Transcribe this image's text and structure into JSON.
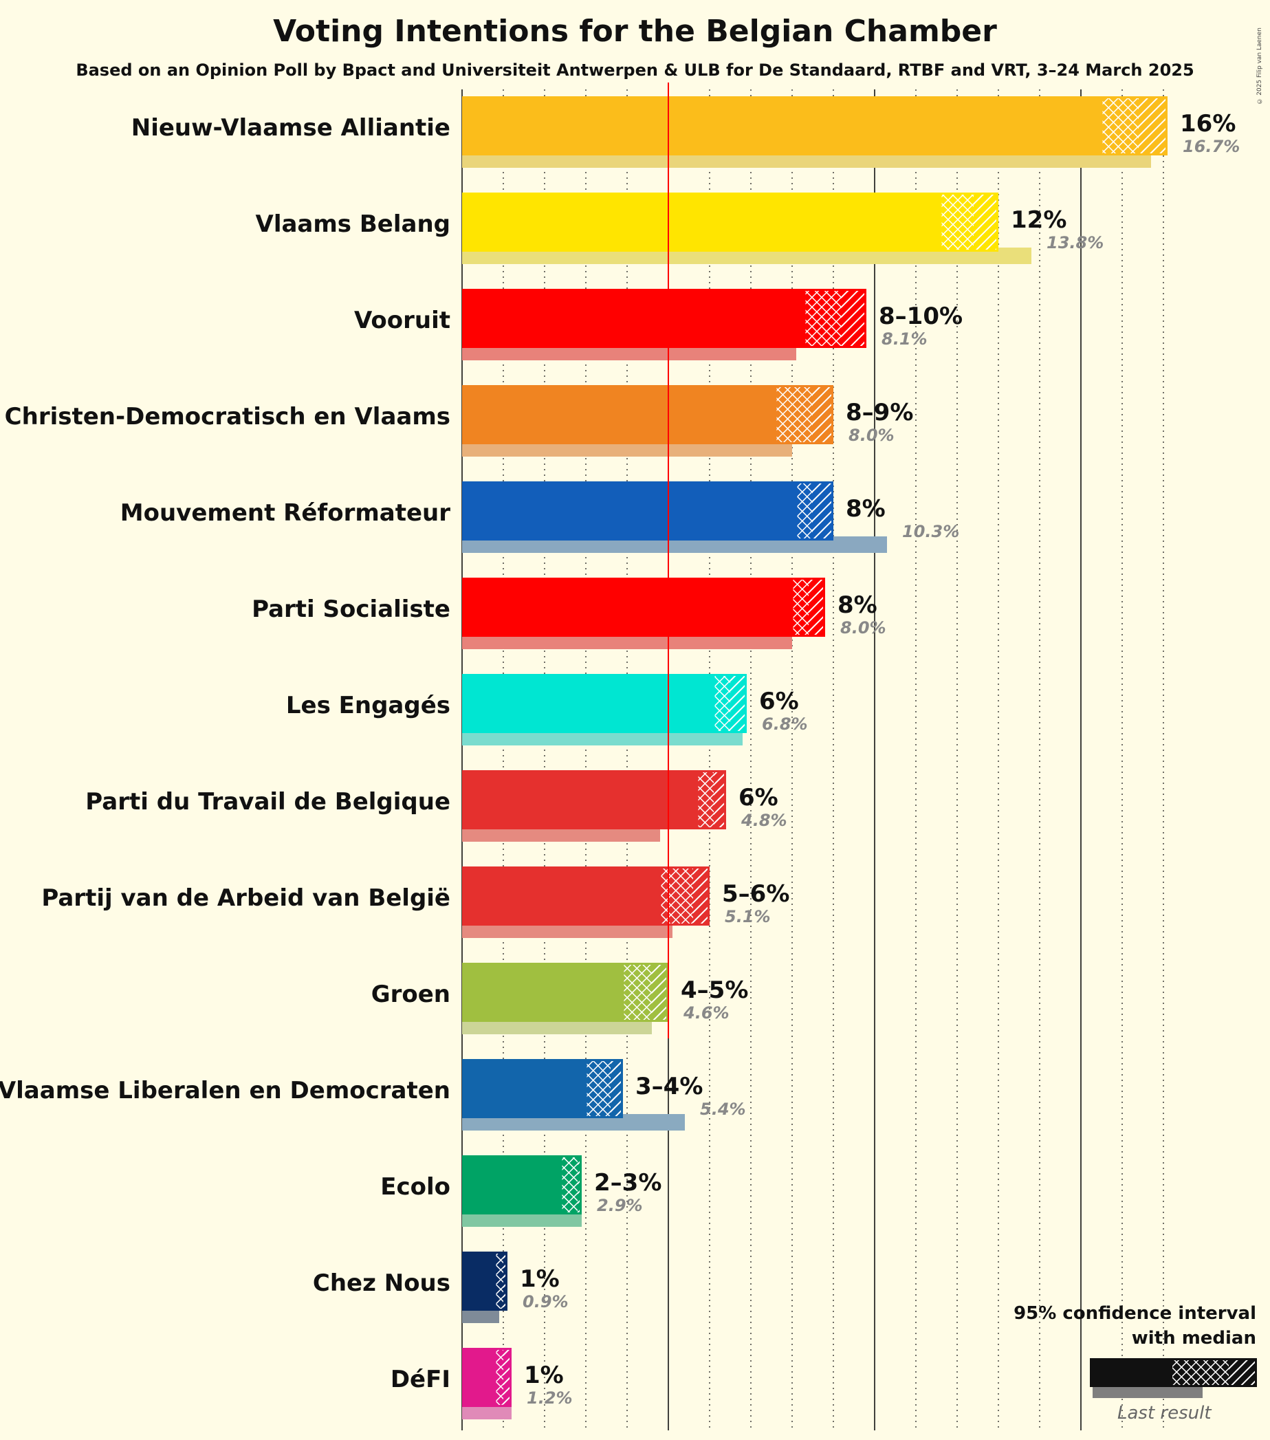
{
  "title": "Voting Intentions for the Belgian Chamber",
  "subtitle": "Based on an Opinion Poll by Bpact and Universiteit Antwerpen & ULB for De Standaard, RTBF and VRT, 3–24 March 2025",
  "copyright": "© 2025 Filip van Laenen",
  "legend": {
    "title_line1": "95% confidence interval",
    "title_line2": "with median",
    "last_result": "Last result"
  },
  "chart_data": {
    "type": "bar",
    "orientation": "horizontal",
    "threshold": 5,
    "xlim": [
      0,
      17
    ],
    "series": [
      {
        "name": "95% confidence interval"
      },
      {
        "name": "Last result"
      }
    ],
    "parties": [
      {
        "name": "Nieuw-Vlaamse Alliantie",
        "color": "#FBBD1B",
        "last_color": "#EAD57A",
        "low": 15.5,
        "median": 16.4,
        "high": 17.1,
        "label": "16%",
        "last": 16.7,
        "last_label": "16.7%"
      },
      {
        "name": "Vlaams Belang",
        "color": "#FFE500",
        "last_color": "#EADF7A",
        "low": 11.6,
        "median": 12.4,
        "high": 13.0,
        "label": "12%",
        "last": 13.8,
        "last_label": "13.8%"
      },
      {
        "name": "Vooruit",
        "color": "#FF0000",
        "last_color": "#E8827A",
        "low": 8.3,
        "median": 9.2,
        "high": 9.8,
        "label": "8–10%",
        "last": 8.1,
        "last_label": "8.1%"
      },
      {
        "name": "Christen-Democratisch en Vlaams",
        "color": "#F08421",
        "last_color": "#E8B07A",
        "low": 7.6,
        "median": 8.5,
        "high": 9.0,
        "label": "8–9%",
        "last": 8.0,
        "last_label": "8.0%"
      },
      {
        "name": "Mouvement Réformateur",
        "color": "#125EBA",
        "last_color": "#8AA8C0",
        "low": 8.1,
        "median": 8.5,
        "high": 9.0,
        "label": "8%",
        "last": 10.3,
        "last_label": "10.3%"
      },
      {
        "name": "Parti Socialiste",
        "color": "#FF0000",
        "last_color": "#E8827A",
        "low": 8.0,
        "median": 8.4,
        "high": 8.8,
        "label": "8%",
        "last": 8.0,
        "last_label": "8.0%"
      },
      {
        "name": "Les Engagés",
        "color": "#00E6D2",
        "last_color": "#7ADCCE",
        "low": 6.1,
        "median": 6.5,
        "high": 6.9,
        "label": "6%",
        "last": 6.8,
        "last_label": "6.8%"
      },
      {
        "name": "Parti du Travail de Belgique",
        "color": "#E5302E",
        "last_color": "#E58A80",
        "low": 5.7,
        "median": 6.1,
        "high": 6.4,
        "label": "6%",
        "last": 4.8,
        "last_label": "4.8%"
      },
      {
        "name": "Partij van de Arbeid van België",
        "color": "#E5302E",
        "last_color": "#E58A80",
        "low": 4.8,
        "median": 5.6,
        "high": 6.0,
        "label": "5–6%",
        "last": 5.1,
        "last_label": "5.1%"
      },
      {
        "name": "Groen",
        "color": "#A0BF40",
        "last_color": "#CCD597",
        "low": 3.9,
        "median": 4.6,
        "high": 5.0,
        "label": "4–5%",
        "last": 4.6,
        "last_label": "4.6%"
      },
      {
        "name": "Open Vlaamse Liberalen en Democraten",
        "color": "#1265AB",
        "last_color": "#8AAAC0",
        "low": 3.0,
        "median": 3.6,
        "high": 3.9,
        "label": "3–4%",
        "last": 5.4,
        "last_label": "5.4%"
      },
      {
        "name": "Ecolo",
        "color": "#00A365",
        "last_color": "#80C7A2",
        "low": 2.4,
        "median": 2.8,
        "high": 2.9,
        "label": "2–3%",
        "last": 2.9,
        "last_label": "2.9%"
      },
      {
        "name": "Chez Nous",
        "color": "#092C64",
        "last_color": "#7F8B98",
        "low": 0.8,
        "median": 1.0,
        "high": 1.1,
        "label": "1%",
        "last": 0.9,
        "last_label": "0.9%"
      },
      {
        "name": "DéFI",
        "color": "#E2198C",
        "last_color": "#E08AB8",
        "low": 0.8,
        "median": 1.0,
        "high": 1.2,
        "label": "1%",
        "last": 1.2,
        "last_label": "1.2%"
      }
    ]
  }
}
